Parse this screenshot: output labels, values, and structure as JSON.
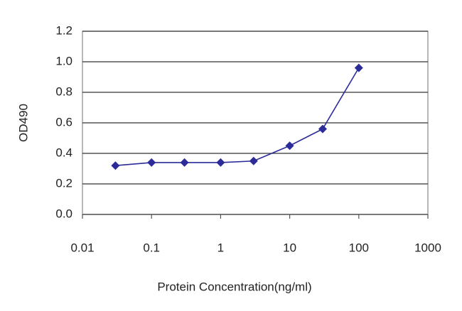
{
  "chart_data": {
    "type": "line",
    "x_label": "Protein Concentration(ng/ml)",
    "y_label": "OD490",
    "x": [
      0.03,
      0.1,
      0.3,
      1,
      3,
      10,
      30,
      100
    ],
    "series": [
      {
        "color": "#2b2b9a",
        "values": [
          0.32,
          0.34,
          0.34,
          0.34,
          0.35,
          0.45,
          0.56,
          0.96
        ]
      }
    ],
    "xscale": "log",
    "xlim": [
      0.01,
      1000
    ],
    "xticks": [
      0.01,
      0.1,
      1,
      10,
      100,
      1000
    ],
    "ylim": [
      0,
      1.2
    ],
    "yticks": [
      {
        "value": 0,
        "label": "0.0"
      },
      0.2,
      0.4,
      0.6,
      0.8,
      {
        "value": 1,
        "label": "1.0"
      },
      1.2
    ],
    "grid": true
  }
}
